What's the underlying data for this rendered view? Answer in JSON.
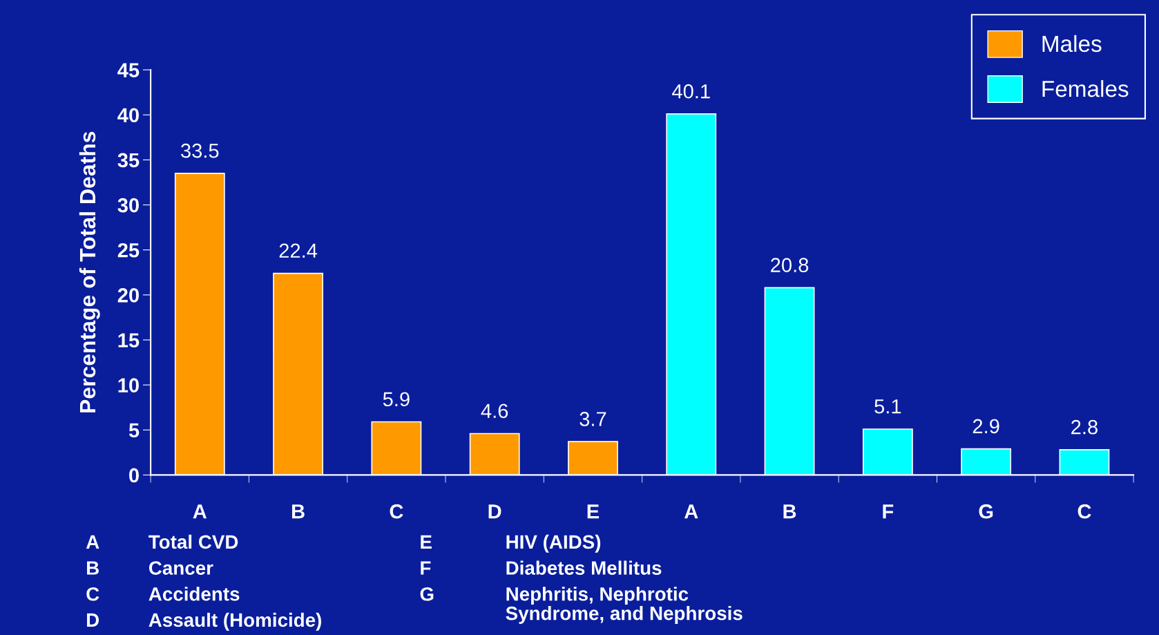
{
  "chart_data": {
    "type": "bar",
    "ylabel": "Percentage of Total Deaths",
    "categories": [
      "A",
      "B",
      "C",
      "D",
      "E",
      "A",
      "B",
      "F",
      "G",
      "C"
    ],
    "series": [
      {
        "name": "Males",
        "color": "#ff9900",
        "values": [
          33.5,
          22.4,
          5.9,
          4.6,
          3.7,
          null,
          null,
          null,
          null,
          null
        ]
      },
      {
        "name": "Females",
        "color": "#00ffff",
        "values": [
          null,
          null,
          null,
          null,
          null,
          40.1,
          20.8,
          5.1,
          2.9,
          2.8
        ]
      }
    ],
    "ylim": [
      0,
      45
    ],
    "yticks": [
      0,
      5,
      10,
      15,
      20,
      25,
      30,
      35,
      40,
      45
    ],
    "data_labels": true,
    "legend": "top right",
    "grid": false,
    "annotations": [
      "A Total CVD",
      "B Cancer",
      "C Accidents",
      "D Assault (Homicide)",
      "E HIV (AIDS)",
      "F Diabetes Mellitus",
      "G Nephritis, Nephrotic\nSyndrome, and Nephrosis"
    ]
  }
}
